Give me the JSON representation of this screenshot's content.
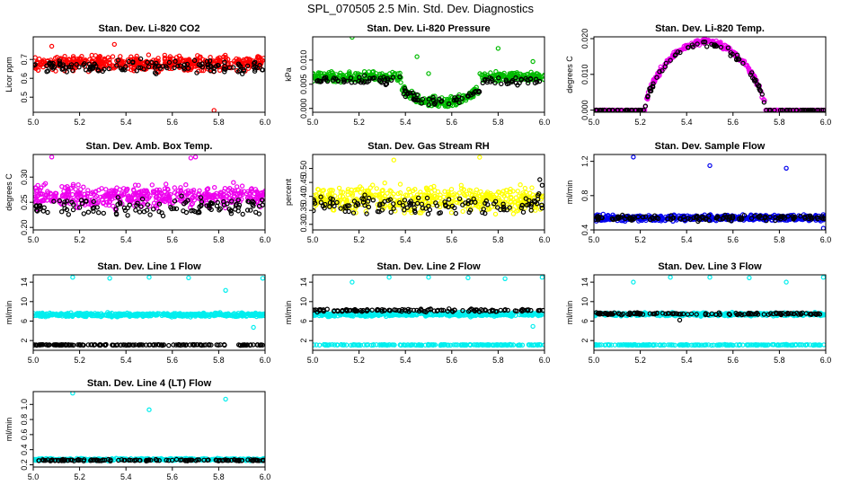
{
  "figure_title": "SPL_070505  2.5 Min. Std. Dev. Diagnostics",
  "chart_data": [
    {
      "type": "scatter",
      "title": "Stan. Dev. Li-820 CO2",
      "ylabel": "Licor ppm",
      "xlim": [
        5.0,
        6.0
      ],
      "ylim": [
        0.42,
        0.82
      ],
      "x_ticks": [
        "5.0",
        "5.2",
        "5.4",
        "5.6",
        "5.8",
        "6.0"
      ],
      "y_ticks": [
        {
          "v": 0.5,
          "label": "0.5"
        },
        {
          "v": 0.6,
          "label": "0.6"
        },
        {
          "v": 0.7,
          "label": "0.7"
        }
      ],
      "series": [
        {
          "color": "#ff0000",
          "pattern": "band",
          "base": 0.68,
          "spread": 0.055,
          "n": 480,
          "outliers": [
            [
              5.78,
              0.43
            ],
            [
              5.08,
              0.77
            ],
            [
              5.35,
              0.78
            ]
          ]
        },
        {
          "color": "#000000",
          "pattern": "band",
          "base": 0.66,
          "spread": 0.05,
          "n": 130,
          "outliers": []
        }
      ]
    },
    {
      "type": "scatter",
      "title": "Stan. Dev. Li-820 Pressure",
      "ylabel": "kPa",
      "xlim": [
        5.0,
        6.0
      ],
      "ylim": [
        -0.0008,
        0.0148
      ],
      "x_ticks": [
        "5.0",
        "5.2",
        "5.4",
        "5.6",
        "5.8",
        "6.0"
      ],
      "y_ticks": [
        {
          "v": 0.0,
          "label": "0.000"
        },
        {
          "v": 0.005,
          "label": "0.005"
        },
        {
          "v": 0.01,
          "label": "0.010"
        }
      ],
      "series": [
        {
          "color": "#00bb00",
          "pattern": "dip",
          "base": 0.0065,
          "low": 0.0012,
          "dipStart": 5.38,
          "dipEnd": 5.72,
          "spread": 0.0015,
          "n": 480,
          "outliers": [
            [
              5.17,
              0.0147
            ],
            [
              5.45,
              0.0107
            ],
            [
              5.8,
              0.0124
            ],
            [
              5.95,
              0.0097
            ],
            [
              5.5,
              0.0072
            ]
          ]
        },
        {
          "color": "#000000",
          "pattern": "dip",
          "base": 0.0058,
          "low": 0.0012,
          "dipStart": 5.38,
          "dipEnd": 5.72,
          "spread": 0.0014,
          "n": 130,
          "outliers": []
        }
      ]
    },
    {
      "type": "scatter",
      "title": "Stan. Dev. Li-820 Temp.",
      "ylabel": "degrees C",
      "xlim": [
        5.0,
        6.0
      ],
      "ylim": [
        -0.0006,
        0.0205
      ],
      "x_ticks": [
        "5.0",
        "5.2",
        "5.4",
        "5.6",
        "5.8",
        "6.0"
      ],
      "y_ticks": [
        {
          "v": 0.0,
          "label": "0.000"
        },
        {
          "v": 0.01,
          "label": "0.010"
        },
        {
          "v": 0.02,
          "label": "0.020"
        }
      ],
      "series": [
        {
          "color": "#ee00ee",
          "pattern": "hump",
          "start": 5.22,
          "end": 5.74,
          "peak": 0.0192,
          "spread": 0.0011,
          "n": 420,
          "outliers": []
        },
        {
          "color": "#000000",
          "pattern": "hump",
          "start": 5.22,
          "end": 5.74,
          "peak": 0.0185,
          "spread": 0.0011,
          "n": 120,
          "outliers": []
        }
      ]
    },
    {
      "type": "scatter",
      "title": "Stan. Dev. Amb. Box Temp.",
      "ylabel": "degrees C",
      "xlim": [
        5.0,
        6.0
      ],
      "ylim": [
        0.195,
        0.345
      ],
      "x_ticks": [
        "5.0",
        "5.2",
        "5.4",
        "5.6",
        "5.8",
        "6.0"
      ],
      "y_ticks": [
        {
          "v": 0.2,
          "label": "0.20"
        },
        {
          "v": 0.25,
          "label": "0.25"
        },
        {
          "v": 0.3,
          "label": "0.30"
        }
      ],
      "series": [
        {
          "color": "#ee00ee",
          "pattern": "band",
          "base": 0.262,
          "spread": 0.03,
          "n": 480,
          "outliers": [
            [
              5.08,
              0.34
            ],
            [
              5.7,
              0.34
            ],
            [
              5.68,
              0.338
            ]
          ]
        },
        {
          "color": "#000000",
          "pattern": "band",
          "base": 0.242,
          "spread": 0.025,
          "n": 130,
          "outliers": []
        }
      ]
    },
    {
      "type": "scatter",
      "title": "Stan. Dev. Gas Stream RH",
      "ylabel": "percent",
      "xlim": [
        5.0,
        6.0
      ],
      "ylim": [
        0.28,
        0.55
      ],
      "x_ticks": [
        "5.0",
        "5.2",
        "5.4",
        "5.6",
        "5.8",
        "6.0"
      ],
      "y_ticks": [
        {
          "v": 0.3,
          "label": "0.30"
        },
        {
          "v": 0.35,
          "label": "0.35"
        },
        {
          "v": 0.4,
          "label": "0.40"
        },
        {
          "v": 0.45,
          "label": "0.45"
        },
        {
          "v": 0.5,
          "label": "0.50"
        }
      ],
      "series": [
        {
          "color": "#ffff00",
          "pattern": "band",
          "base": 0.39,
          "spread": 0.065,
          "n": 480,
          "outliers": [
            [
              5.35,
              0.53
            ],
            [
              5.72,
              0.54
            ]
          ]
        },
        {
          "color": "#000000",
          "pattern": "band",
          "base": 0.37,
          "spread": 0.05,
          "n": 130,
          "outliers": [
            [
              5.98,
              0.46
            ],
            [
              5.99,
              0.44
            ]
          ]
        }
      ]
    },
    {
      "type": "scatter",
      "title": "Stan. Dev. Sample Flow",
      "ylabel": "ml/min",
      "xlim": [
        5.0,
        6.0
      ],
      "ylim": [
        0.4,
        1.28
      ],
      "x_ticks": [
        "5.0",
        "5.2",
        "5.4",
        "5.6",
        "5.8",
        "6.0"
      ],
      "y_ticks": [
        {
          "v": 0.4,
          "label": "0.4"
        },
        {
          "v": 0.8,
          "label": "0.8"
        },
        {
          "v": 1.2,
          "label": "1.2"
        }
      ],
      "series": [
        {
          "color": "#0000ee",
          "pattern": "band",
          "base": 0.54,
          "spread": 0.05,
          "n": 480,
          "outliers": [
            [
              5.17,
              1.25
            ],
            [
              5.5,
              1.15
            ],
            [
              5.83,
              1.12
            ],
            [
              5.99,
              0.42
            ]
          ]
        },
        {
          "color": "#000000",
          "pattern": "band",
          "base": 0.54,
          "spread": 0.045,
          "n": 130,
          "outliers": []
        }
      ]
    },
    {
      "type": "scatter",
      "title": "Stan. Dev. Line 1 Flow",
      "ylabel": "ml/min",
      "xlim": [
        5.0,
        6.0
      ],
      "ylim": [
        0.0,
        15.5
      ],
      "x_ticks": [
        "5.0",
        "5.2",
        "5.4",
        "5.6",
        "5.8",
        "6.0"
      ],
      "y_ticks": [
        {
          "v": 2,
          "label": "2"
        },
        {
          "v": 6,
          "label": "6"
        },
        {
          "v": 10,
          "label": "10"
        },
        {
          "v": 14,
          "label": "14"
        }
      ],
      "series": [
        {
          "color": "#00eeee",
          "pattern": "band",
          "base": 7.3,
          "spread": 0.55,
          "n": 480,
          "outliers": [
            [
              5.17,
              15.0
            ],
            [
              5.33,
              14.8
            ],
            [
              5.5,
              15.0
            ],
            [
              5.67,
              14.9
            ],
            [
              5.83,
              12.3
            ],
            [
              5.99,
              14.8
            ],
            [
              5.95,
              4.7
            ]
          ]
        },
        {
          "color": "#000000",
          "pattern": "band",
          "base": 1.1,
          "spread": 0.12,
          "n": 160,
          "outliers": []
        }
      ]
    },
    {
      "type": "scatter",
      "title": "Stan. Dev. Line 2 Flow",
      "ylabel": "ml/min",
      "xlim": [
        5.0,
        6.0
      ],
      "ylim": [
        0.0,
        15.5
      ],
      "x_ticks": [
        "5.0",
        "5.2",
        "5.4",
        "5.6",
        "5.8",
        "6.0"
      ],
      "y_ticks": [
        {
          "v": 2,
          "label": "2"
        },
        {
          "v": 6,
          "label": "6"
        },
        {
          "v": 10,
          "label": "10"
        },
        {
          "v": 14,
          "label": "14"
        }
      ],
      "series": [
        {
          "color": "#00eeee",
          "pattern": "band",
          "base": 7.4,
          "spread": 0.6,
          "n": 420,
          "outliers": [
            [
              5.17,
              14.0
            ],
            [
              5.33,
              15.0
            ],
            [
              5.5,
              15.0
            ],
            [
              5.67,
              14.9
            ],
            [
              5.83,
              14.7
            ],
            [
              5.99,
              15.0
            ],
            [
              5.95,
              4.9
            ]
          ]
        },
        {
          "color": "#00eeee",
          "pattern": "band",
          "base": 1.1,
          "spread": 0.12,
          "n": 200,
          "outliers": []
        },
        {
          "color": "#000000",
          "pattern": "band",
          "base": 8.2,
          "spread": 0.4,
          "n": 130,
          "outliers": []
        }
      ]
    },
    {
      "type": "scatter",
      "title": "Stan. Dev. Line 3 Flow",
      "ylabel": "ml/min",
      "xlim": [
        5.0,
        6.0
      ],
      "ylim": [
        0.0,
        15.5
      ],
      "x_ticks": [
        "5.0",
        "5.2",
        "5.4",
        "5.6",
        "5.8",
        "6.0"
      ],
      "y_ticks": [
        {
          "v": 2,
          "label": "2"
        },
        {
          "v": 6,
          "label": "6"
        },
        {
          "v": 10,
          "label": "10"
        },
        {
          "v": 14,
          "label": "14"
        }
      ],
      "series": [
        {
          "color": "#00eeee",
          "pattern": "band",
          "base": 7.4,
          "spread": 0.5,
          "n": 420,
          "outliers": [
            [
              5.17,
              14.0
            ],
            [
              5.33,
              15.0
            ],
            [
              5.5,
              15.0
            ],
            [
              5.67,
              14.9
            ],
            [
              5.83,
              14.0
            ],
            [
              5.99,
              15.0
            ]
          ]
        },
        {
          "color": "#00eeee",
          "pattern": "band",
          "base": 1.1,
          "spread": 0.12,
          "n": 200,
          "outliers": []
        },
        {
          "color": "#000000",
          "pattern": "band",
          "base": 7.5,
          "spread": 0.35,
          "n": 130,
          "outliers": [
            [
              5.37,
              6.2
            ]
          ]
        }
      ]
    },
    {
      "type": "scatter",
      "title": "Stan. Dev. Line 4 (LT) Flow",
      "ylabel": "ml/min",
      "xlim": [
        5.0,
        6.0
      ],
      "ylim": [
        0.17,
        1.17
      ],
      "x_ticks": [
        "5.0",
        "5.2",
        "5.4",
        "5.6",
        "5.8",
        "6.0"
      ],
      "y_ticks": [
        {
          "v": 0.2,
          "label": "0.2"
        },
        {
          "v": 0.4,
          "label": "0.4"
        },
        {
          "v": 0.6,
          "label": "0.6"
        },
        {
          "v": 0.8,
          "label": "0.8"
        },
        {
          "v": 1.0,
          "label": "1.0"
        }
      ],
      "series": [
        {
          "color": "#00eeee",
          "pattern": "band",
          "base": 0.27,
          "spread": 0.02,
          "n": 480,
          "outliers": [
            [
              5.17,
              1.15
            ],
            [
              5.5,
              0.93
            ],
            [
              5.83,
              1.07
            ]
          ]
        },
        {
          "color": "#000000",
          "pattern": "band",
          "base": 0.26,
          "spread": 0.015,
          "n": 130,
          "outliers": []
        }
      ]
    }
  ]
}
